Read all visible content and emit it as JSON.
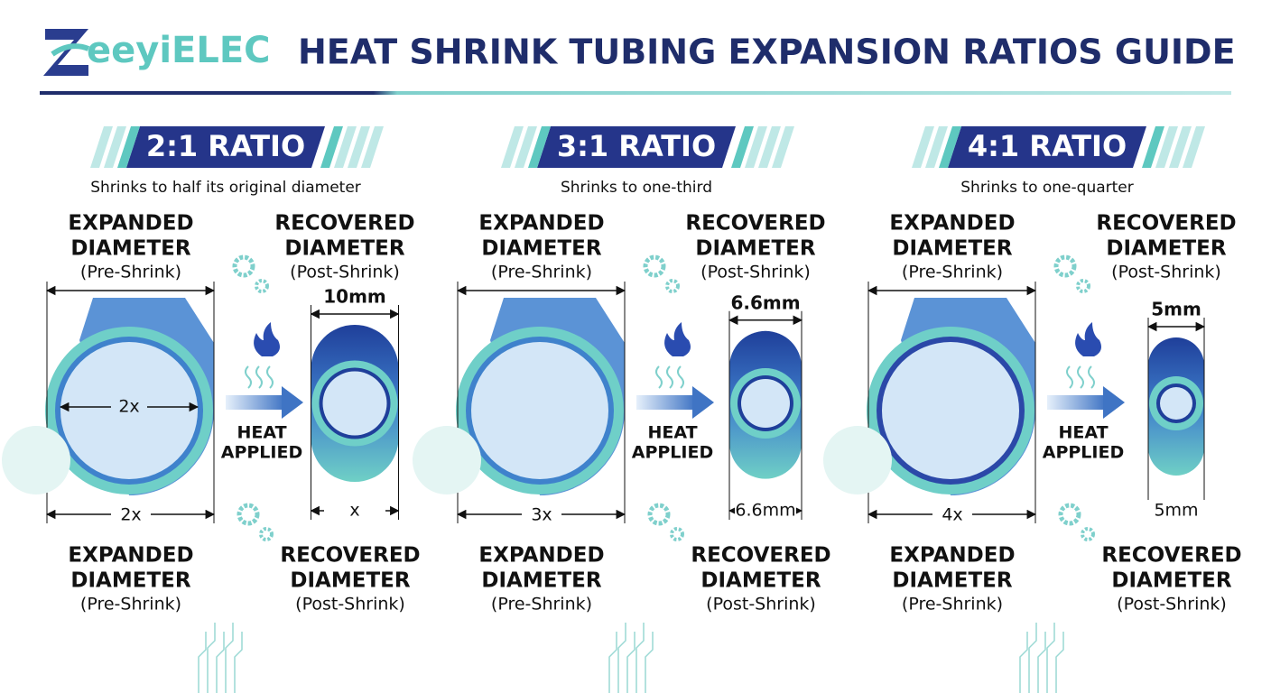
{
  "header": {
    "logo_letter": "Z",
    "brand": "eeyiELEC",
    "title": "HEAT SHRINK TUBING EXPANSION RATIOS GUIDE"
  },
  "panels": [
    {
      "ratio": "2:1 RATIO",
      "subtitle": "Shrinks to half its original diameter",
      "top_expanded": {
        "lines": [
          "EXPANDED",
          "DIAMETER"
        ],
        "note": "(Pre-Shrink)"
      },
      "top_recovered": {
        "lines": [
          "RECOVERED",
          "DIAMETER"
        ],
        "note": "(Post-Shrink)"
      },
      "inner_label": "2x",
      "expanded_width": "2x",
      "recovered_top": "10mm",
      "recovered_bottom": "x",
      "heat": [
        "HEAT",
        "APPLIED"
      ],
      "bottom_expanded": {
        "lines": [
          "EXPANDED",
          "DIAMETER"
        ],
        "note": "(Pre-Shrink)"
      },
      "bottom_recovered": {
        "lines": [
          "RECOVERED",
          "DIAMETER"
        ],
        "note": "(Post-Shrink)"
      }
    },
    {
      "ratio": "3:1 RATIO",
      "subtitle": "Shrinks to one-third",
      "top_expanded": {
        "lines": [
          "EXPANDED",
          "DIAMETER"
        ],
        "note": "(Pre-Shrink)"
      },
      "top_recovered": {
        "lines": [
          "RECOVERED",
          "DIAMETER"
        ],
        "note": "(Post-Shrink)"
      },
      "expanded_width": "3x",
      "recovered_top": "6.6mm",
      "recovered_bottom": "6.6mm",
      "heat": [
        "HEAT",
        "APPLIED"
      ],
      "bottom_expanded": {
        "lines": [
          "EXPANDED",
          "DIAMETER"
        ],
        "note": "(Pre-Shrink)"
      },
      "bottom_recovered": {
        "lines": [
          "RECOVERED",
          "DIAMETER"
        ],
        "note": "(Post-Shrink)"
      }
    },
    {
      "ratio": "4:1 RATIO",
      "subtitle": "Shrinks to one-quarter",
      "top_expanded": {
        "lines": [
          "EXPANDED",
          "DIAMETER"
        ],
        "note": "(Pre-Shrink)"
      },
      "top_recovered": {
        "lines": [
          "RECOVERED",
          "DIAMETER"
        ],
        "note": "(Post-Shrink)"
      },
      "expanded_width": "4x",
      "recovered_top": "5mm",
      "recovered_bottom": "5mm",
      "heat": [
        "HEAT",
        "APPLIED"
      ],
      "bottom_expanded": {
        "lines": [
          "EXPANDED",
          "DIAMETER"
        ],
        "note": "(Pre-Shrink)"
      },
      "bottom_recovered": {
        "lines": [
          "RECOVERED",
          "DIAMETER"
        ],
        "note": "(Post-Shrink)"
      }
    }
  ]
}
